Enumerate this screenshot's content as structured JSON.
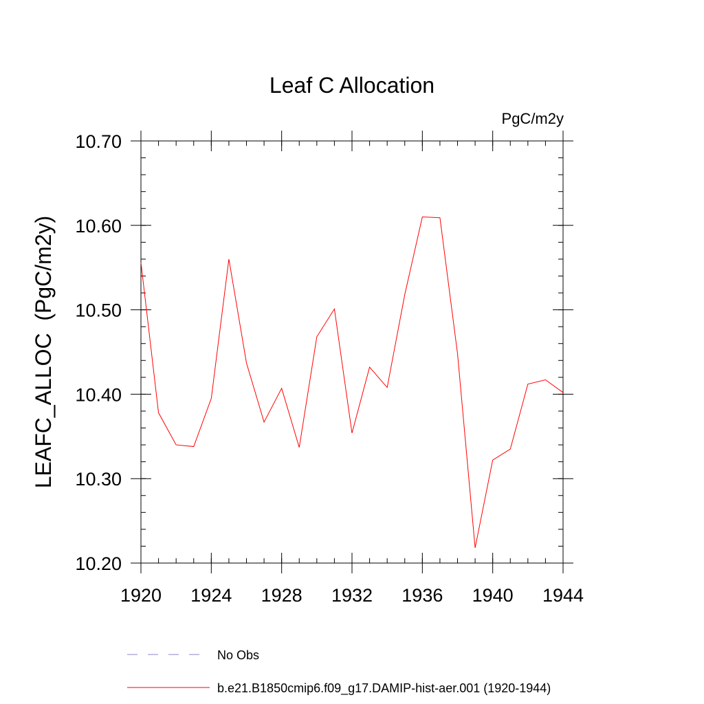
{
  "chart_data": {
    "type": "line",
    "title": "Leaf C Allocation",
    "units_label": "PgC/m2y",
    "ylabel": "LEAFC_ALLOC  (PgC/m2y)",
    "xlabel": "",
    "xlim": [
      1920,
      1944
    ],
    "ylim": [
      10.2,
      10.7
    ],
    "x_ticks": [
      1920,
      1924,
      1928,
      1932,
      1936,
      1940,
      1944
    ],
    "x_tick_labels": [
      "1920",
      "1924",
      "1928",
      "1932",
      "1936",
      "1940",
      "1944"
    ],
    "y_ticks": [
      10.2,
      10.3,
      10.4,
      10.5,
      10.6,
      10.7
    ],
    "y_tick_labels": [
      "10.20",
      "10.30",
      "10.40",
      "10.50",
      "10.60",
      "10.70"
    ],
    "x_minor_step": 1,
    "y_minor_step": 0.02,
    "grid": false,
    "legend_position": "bottom-left",
    "series": [
      {
        "name": "b.e21.B1850cmip6.f09_g17.DAMIP-hist-aer.001 (1920-1944)",
        "color": "#ff0000",
        "style": "solid",
        "x": [
          1920,
          1921,
          1922,
          1923,
          1924,
          1925,
          1926,
          1927,
          1928,
          1929,
          1930,
          1931,
          1932,
          1933,
          1934,
          1935,
          1936,
          1937,
          1938,
          1939,
          1940,
          1941,
          1942,
          1943,
          1944
        ],
        "y": [
          10.556,
          10.378,
          10.34,
          10.338,
          10.395,
          10.56,
          10.437,
          10.367,
          10.407,
          10.337,
          10.468,
          10.501,
          10.354,
          10.432,
          10.408,
          10.518,
          10.61,
          10.609,
          10.448,
          10.218,
          10.322,
          10.335,
          10.412,
          10.417,
          10.402
        ]
      }
    ],
    "legend": [
      {
        "label": "No Obs",
        "color": "#8a85c8",
        "style": "dashed"
      },
      {
        "label": "b.e21.B1850cmip6.f09_g17.DAMIP-hist-aer.001 (1920-1944)",
        "color": "#ff0000",
        "style": "solid"
      }
    ]
  }
}
